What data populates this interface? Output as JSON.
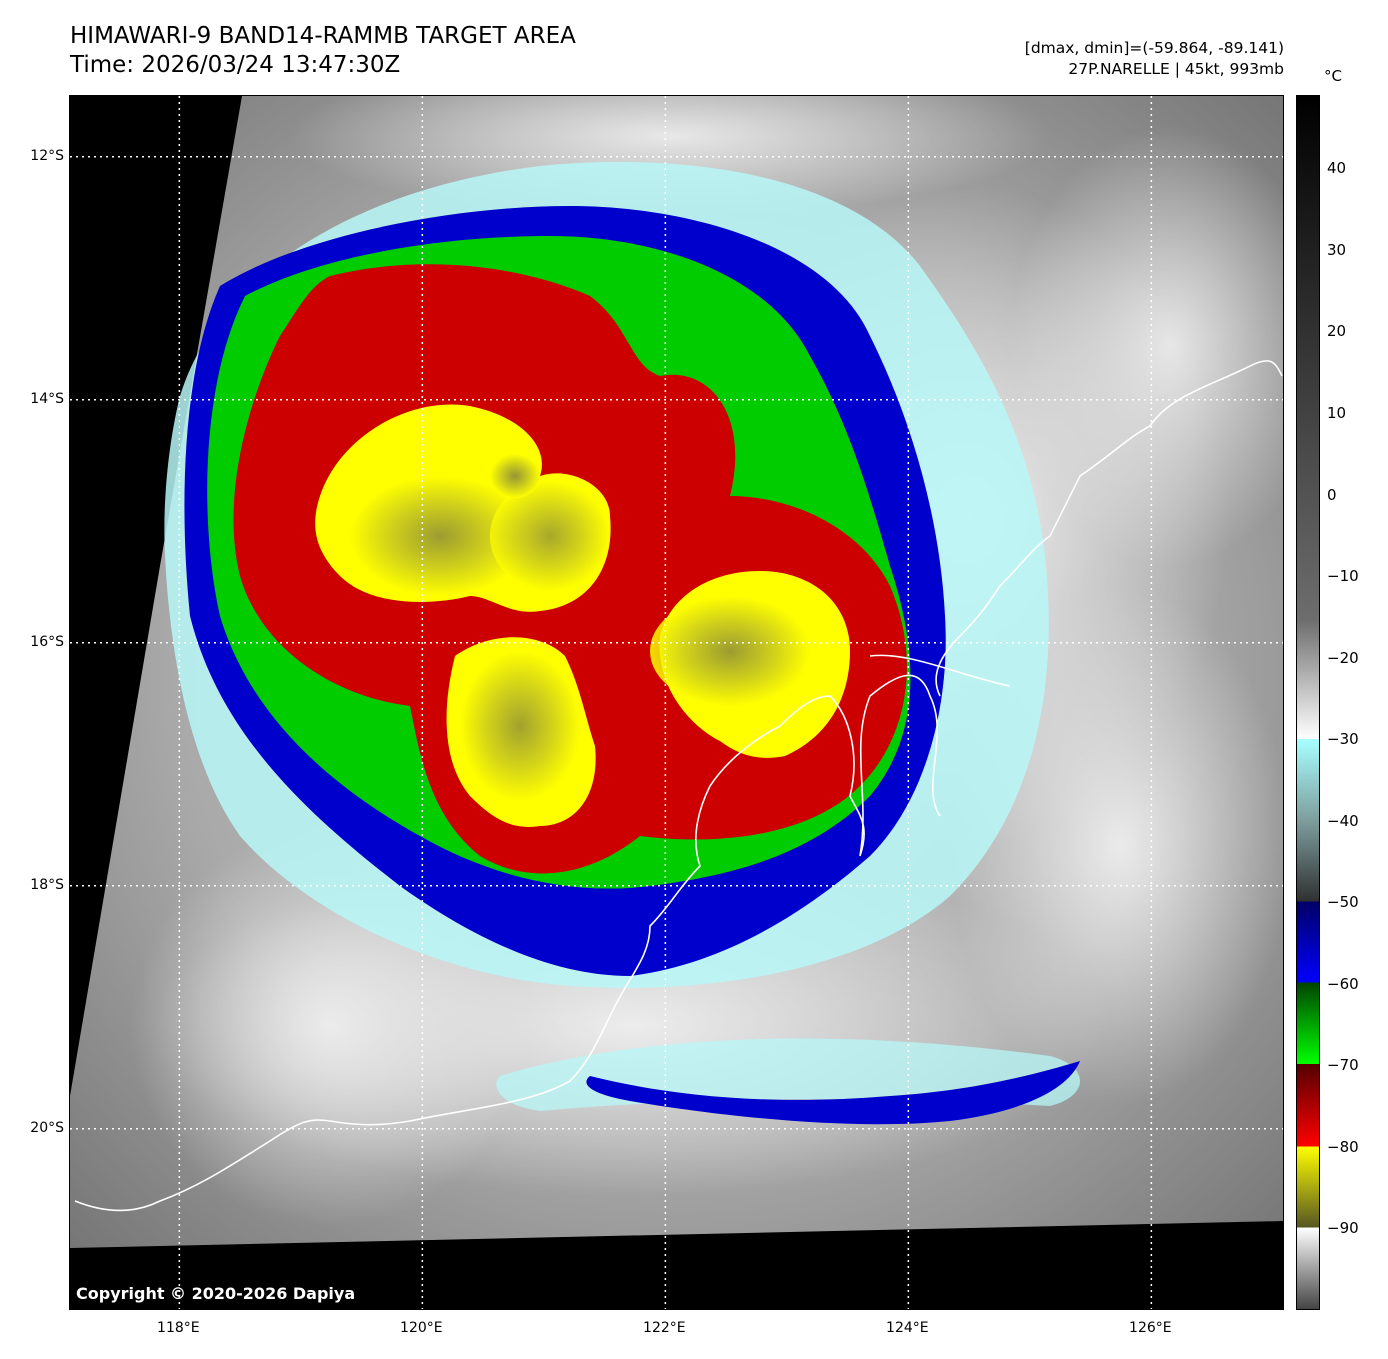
{
  "header": {
    "title": "HIMAWARI-9 BAND14-RAMMB TARGET AREA",
    "time": "Time: 2026/03/24 13:47:30Z",
    "range": "[dmax, dmin]=(-59.864, -89.141)",
    "storm": "27P.NARELLE | 45kt, 993mb"
  },
  "map": {
    "copyright": "Copyright © 2020-2026 Dapiya",
    "lat_labels": [
      {
        "label": "12°S",
        "value": -12
      },
      {
        "label": "14°S",
        "value": -14
      },
      {
        "label": "16°S",
        "value": -16
      },
      {
        "label": "18°S",
        "value": -18
      },
      {
        "label": "20°S",
        "value": -20
      }
    ],
    "lon_labels": [
      {
        "label": "118°E",
        "value": 118
      },
      {
        "label": "120°E",
        "value": 120
      },
      {
        "label": "122°E",
        "value": 122
      },
      {
        "label": "124°E",
        "value": 124
      },
      {
        "label": "126°E",
        "value": 126
      }
    ],
    "lat_range": [
      -21.5,
      -11.5
    ],
    "lon_range": [
      117.1,
      127.1
    ]
  },
  "colorbar": {
    "unit": "°C",
    "ticks": [
      "40",
      "30",
      "20",
      "10",
      "0",
      "−10",
      "−20",
      "−30",
      "−40",
      "−50",
      "−60",
      "−70",
      "−80",
      "−90"
    ],
    "tick_values": [
      40,
      30,
      20,
      10,
      0,
      -10,
      -20,
      -30,
      -40,
      -50,
      -60,
      -70,
      -80,
      -90
    ],
    "range": [
      -100,
      49
    ],
    "colors": {
      "yellow": "#ffff00",
      "red": "#cc0000",
      "green": "#00cc00",
      "blue": "#0000cc",
      "cyan": "#aaffff"
    }
  }
}
